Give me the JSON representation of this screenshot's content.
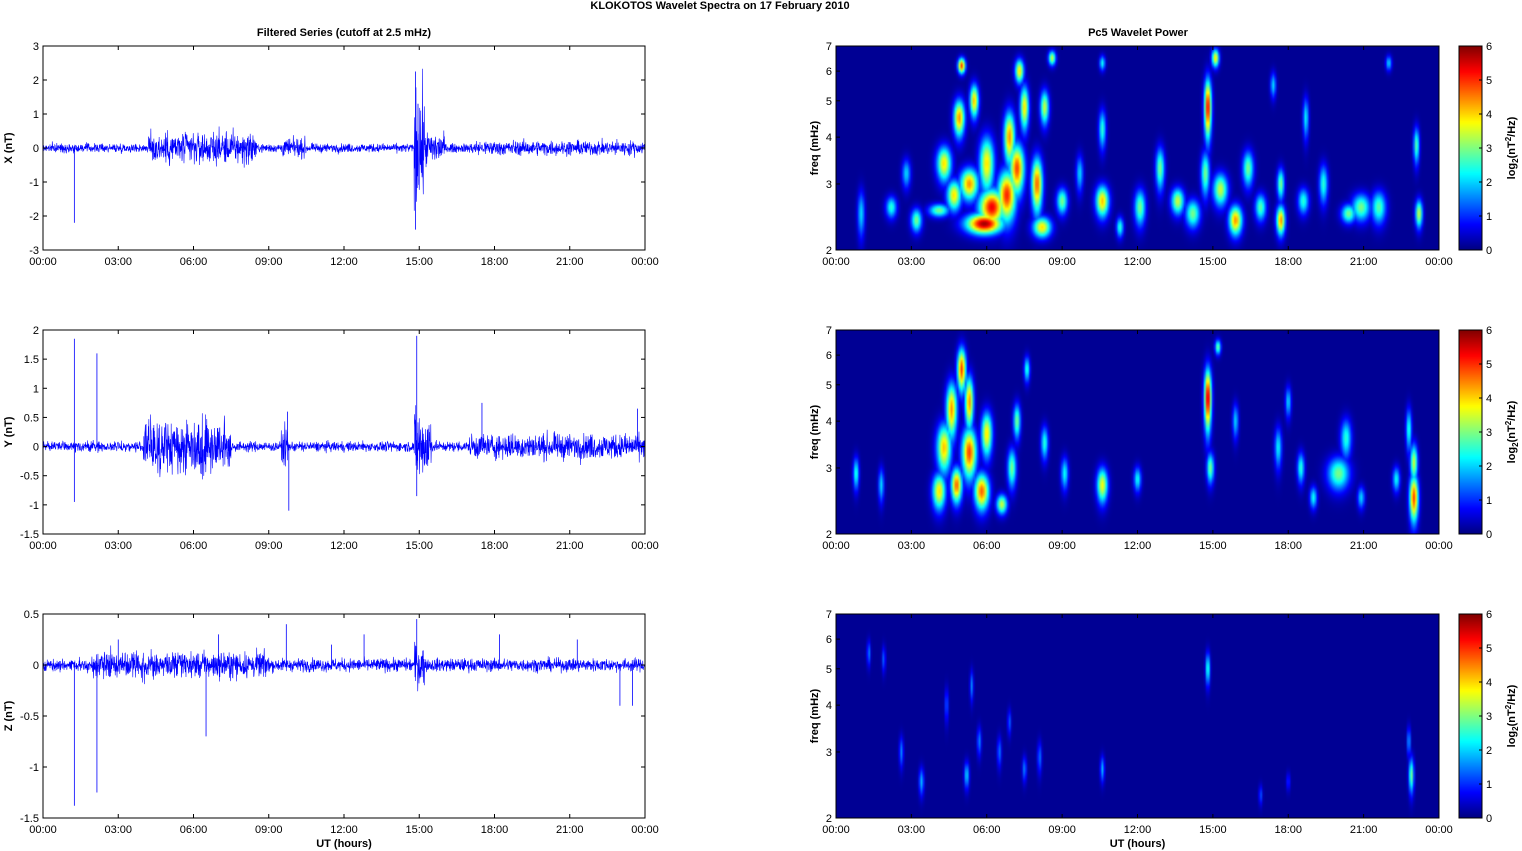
{
  "suptitle": "KLOKOTOS Wavelet Spectra on 17 February  2010",
  "left_title": "Filtered Series (cutoff at 2.5 mHz)",
  "right_title": "Pc5 Wavelet Power",
  "x_label": "UT (hours)",
  "x_tick_labels": [
    "00:00",
    "03:00",
    "06:00",
    "09:00",
    "12:00",
    "15:00",
    "18:00",
    "21:00",
    "00:00"
  ],
  "freq_label": "freq (mHz)",
  "freq_ticks": [
    "2",
    "3",
    "4",
    "5",
    "6",
    "7"
  ],
  "colorbar_label": "log2(nT2/Hz)",
  "colorbar_ticks": [
    "0",
    "1",
    "2",
    "3",
    "4",
    "5",
    "6"
  ],
  "colors": {
    "trace": "#0000ff",
    "jet_low": "#00008f",
    "jet_high": "#800000"
  },
  "chart_data": [
    {
      "type": "line",
      "component": "X",
      "ylabel": "X (nT)",
      "ylim": [
        -3,
        3
      ],
      "yticks": [
        "-3",
        "-2",
        "-1",
        "0",
        "1",
        "2",
        "3"
      ],
      "xlim_hours": [
        0,
        24
      ],
      "series": [
        {
          "baseline": 0,
          "noise_amplitude_nT": 0.12,
          "bursts": [
            [
              4.2,
              8.5,
              0.45
            ],
            [
              14.8,
              15.2,
              1.5
            ],
            [
              15.2,
              16.0,
              0.45
            ],
            [
              9.5,
              10.5,
              0.25
            ],
            [
              17.0,
              24,
              0.2
            ]
          ],
          "spikes": [
            [
              1.25,
              -2.2
            ],
            [
              14.85,
              2.25
            ],
            [
              14.85,
              -2.4
            ],
            [
              14.95,
              1.3
            ]
          ]
        }
      ]
    },
    {
      "type": "line",
      "component": "Y",
      "ylabel": "Y (nT)",
      "ylim": [
        -1.5,
        2
      ],
      "yticks": [
        "-1.5",
        "-1",
        "-0.5",
        "0",
        "0.5",
        "1",
        "1.5",
        "2"
      ],
      "xlim_hours": [
        0,
        24
      ],
      "series": [
        {
          "baseline": 0,
          "noise_amplitude_nT": 0.08,
          "bursts": [
            [
              4.0,
              7.5,
              0.45
            ],
            [
              14.8,
              15.5,
              0.6
            ],
            [
              17.0,
              24,
              0.2
            ],
            [
              9.5,
              9.8,
              0.3
            ]
          ],
          "spikes": [
            [
              1.25,
              1.85
            ],
            [
              1.25,
              -0.95
            ],
            [
              2.15,
              1.6
            ],
            [
              9.8,
              -1.1
            ],
            [
              9.75,
              0.6
            ],
            [
              14.9,
              1.9
            ],
            [
              14.9,
              -0.85
            ],
            [
              17.5,
              0.75
            ],
            [
              23.7,
              0.65
            ]
          ]
        }
      ]
    },
    {
      "type": "line",
      "component": "Z",
      "ylabel": "Z (nT)",
      "ylim": [
        -1.5,
        0.5
      ],
      "yticks": [
        "-1.5",
        "-1",
        "-0.5",
        "0",
        "0.5"
      ],
      "xlim_hours": [
        0,
        24
      ],
      "series": [
        {
          "baseline": 0,
          "noise_amplitude_nT": 0.06,
          "bursts": [
            [
              2.0,
              9.0,
              0.12
            ],
            [
              14.8,
              15.2,
              0.2
            ]
          ],
          "spikes": [
            [
              1.25,
              -1.38
            ],
            [
              2.15,
              -1.25
            ],
            [
              6.5,
              -0.7
            ],
            [
              9.7,
              0.4
            ],
            [
              14.9,
              0.45
            ],
            [
              3.0,
              0.25
            ],
            [
              7.0,
              0.3
            ],
            [
              11.5,
              0.2
            ],
            [
              12.8,
              0.3
            ],
            [
              18.2,
              0.3
            ],
            [
              21.3,
              0.25
            ],
            [
              23.0,
              -0.4
            ],
            [
              23.5,
              -0.4
            ]
          ]
        }
      ]
    },
    {
      "type": "heatmap",
      "component": "X",
      "quantity": "Pc5 wavelet power",
      "xlim_hours": [
        0,
        24
      ],
      "ylim_mHz": [
        2,
        7
      ],
      "ylog": true,
      "clim": [
        0,
        6
      ],
      "colormap": "jet",
      "blobs": [
        [
          4.1,
          2.55,
          0.28,
          0.07,
          3
        ],
        [
          4.3,
          3.4,
          0.2,
          0.25,
          4
        ],
        [
          4.7,
          2.8,
          0.2,
          0.18,
          4
        ],
        [
          4.9,
          4.5,
          0.15,
          0.35,
          4.5
        ],
        [
          5.0,
          6.2,
          0.1,
          0.2,
          5
        ],
        [
          5.3,
          3.0,
          0.25,
          0.2,
          4.5
        ],
        [
          5.5,
          5.0,
          0.12,
          0.35,
          4.2
        ],
        [
          5.9,
          2.35,
          0.5,
          0.1,
          6
        ],
        [
          6.2,
          2.6,
          0.35,
          0.2,
          5.5
        ],
        [
          6.0,
          3.4,
          0.2,
          0.4,
          4
        ],
        [
          6.8,
          2.8,
          0.25,
          0.3,
          5.2
        ],
        [
          6.9,
          4.0,
          0.15,
          0.45,
          4.5
        ],
        [
          7.2,
          3.3,
          0.2,
          0.35,
          5
        ],
        [
          7.5,
          4.8,
          0.12,
          0.45,
          4
        ],
        [
          7.3,
          6.0,
          0.12,
          0.3,
          4
        ],
        [
          8.0,
          3.0,
          0.15,
          0.35,
          4.8
        ],
        [
          8.3,
          4.8,
          0.12,
          0.35,
          3.5
        ],
        [
          8.6,
          6.5,
          0.1,
          0.2,
          3.5
        ],
        [
          8.2,
          2.3,
          0.25,
          0.1,
          4
        ],
        [
          9.0,
          2.7,
          0.15,
          0.15,
          3
        ],
        [
          1.0,
          2.5,
          0.1,
          0.25,
          2
        ],
        [
          2.2,
          2.6,
          0.15,
          0.12,
          2.5
        ],
        [
          3.2,
          2.4,
          0.15,
          0.12,
          3
        ],
        [
          2.8,
          3.2,
          0.12,
          0.2,
          2
        ],
        [
          10.6,
          2.7,
          0.18,
          0.18,
          4.2
        ],
        [
          10.6,
          4.2,
          0.1,
          0.35,
          2.5
        ],
        [
          10.6,
          6.3,
          0.08,
          0.2,
          2.3
        ],
        [
          9.7,
          3.2,
          0.1,
          0.25,
          2
        ],
        [
          12.1,
          2.6,
          0.15,
          0.2,
          3
        ],
        [
          12.9,
          3.3,
          0.12,
          0.3,
          3
        ],
        [
          13.6,
          2.7,
          0.18,
          0.15,
          3.5
        ],
        [
          14.2,
          2.5,
          0.2,
          0.15,
          3
        ],
        [
          14.7,
          3.2,
          0.12,
          0.3,
          3
        ],
        [
          14.8,
          4.8,
          0.1,
          0.6,
          5.5
        ],
        [
          15.1,
          6.5,
          0.1,
          0.25,
          4
        ],
        [
          15.3,
          2.9,
          0.2,
          0.2,
          3.5
        ],
        [
          15.9,
          2.4,
          0.18,
          0.15,
          4.5
        ],
        [
          16.4,
          3.3,
          0.15,
          0.25,
          3
        ],
        [
          16.9,
          2.6,
          0.15,
          0.15,
          2.8
        ],
        [
          17.7,
          2.4,
          0.12,
          0.15,
          4.5
        ],
        [
          17.7,
          3.0,
          0.1,
          0.2,
          3
        ],
        [
          18.6,
          2.7,
          0.15,
          0.15,
          2.5
        ],
        [
          18.7,
          4.5,
          0.08,
          0.4,
          2.2
        ],
        [
          19.4,
          3.0,
          0.12,
          0.25,
          2.5
        ],
        [
          20.4,
          2.5,
          0.2,
          0.1,
          3
        ],
        [
          20.9,
          2.6,
          0.25,
          0.15,
          3
        ],
        [
          21.6,
          2.6,
          0.2,
          0.18,
          2.8
        ],
        [
          23.2,
          2.5,
          0.1,
          0.15,
          3.5
        ],
        [
          23.1,
          3.8,
          0.08,
          0.3,
          2.8
        ],
        [
          17.4,
          5.5,
          0.08,
          0.3,
          2
        ],
        [
          22.0,
          6.3,
          0.08,
          0.2,
          2
        ],
        [
          11.3,
          2.3,
          0.1,
          0.1,
          2.5
        ]
      ]
    },
    {
      "type": "heatmap",
      "component": "Y",
      "quantity": "Pc5 wavelet power",
      "xlim_hours": [
        0,
        24
      ],
      "ylim_mHz": [
        2,
        7
      ],
      "ylog": true,
      "clim": [
        0,
        6
      ],
      "colormap": "jet",
      "blobs": [
        [
          0.8,
          2.9,
          0.08,
          0.2,
          2.5
        ],
        [
          1.8,
          2.7,
          0.08,
          0.2,
          2
        ],
        [
          4.1,
          2.6,
          0.18,
          0.2,
          4
        ],
        [
          4.3,
          3.4,
          0.2,
          0.35,
          4.2
        ],
        [
          4.6,
          4.3,
          0.15,
          0.5,
          4.5
        ],
        [
          4.8,
          2.7,
          0.15,
          0.2,
          4.8
        ],
        [
          5.0,
          5.5,
          0.12,
          0.5,
          5
        ],
        [
          5.3,
          3.3,
          0.2,
          0.35,
          5
        ],
        [
          5.3,
          4.5,
          0.12,
          0.5,
          4.5
        ],
        [
          5.8,
          2.6,
          0.2,
          0.2,
          4.8
        ],
        [
          6.0,
          3.7,
          0.15,
          0.35,
          4
        ],
        [
          6.6,
          2.4,
          0.15,
          0.1,
          3.5
        ],
        [
          7.0,
          3.0,
          0.12,
          0.25,
          3
        ],
        [
          7.2,
          4.0,
          0.1,
          0.3,
          3
        ],
        [
          7.6,
          5.5,
          0.08,
          0.3,
          2.5
        ],
        [
          8.3,
          3.5,
          0.1,
          0.25,
          2.5
        ],
        [
          9.1,
          2.9,
          0.1,
          0.2,
          2.3
        ],
        [
          10.6,
          2.7,
          0.15,
          0.2,
          3.8
        ],
        [
          12.0,
          2.8,
          0.1,
          0.15,
          2.3
        ],
        [
          14.8,
          4.6,
          0.1,
          0.6,
          5.8
        ],
        [
          14.9,
          3.0,
          0.1,
          0.2,
          3
        ],
        [
          15.2,
          6.3,
          0.08,
          0.2,
          3
        ],
        [
          17.6,
          3.4,
          0.1,
          0.3,
          2.2
        ],
        [
          18.5,
          3.0,
          0.1,
          0.2,
          2.5
        ],
        [
          19.0,
          2.5,
          0.1,
          0.12,
          2.3
        ],
        [
          20.0,
          2.9,
          0.3,
          0.2,
          3
        ],
        [
          20.3,
          3.6,
          0.15,
          0.3,
          2.5
        ],
        [
          20.9,
          2.5,
          0.1,
          0.12,
          2
        ],
        [
          22.3,
          2.8,
          0.1,
          0.15,
          2.3
        ],
        [
          23.0,
          2.5,
          0.12,
          0.25,
          5
        ],
        [
          23.0,
          3.1,
          0.1,
          0.25,
          3.5
        ],
        [
          22.8,
          3.8,
          0.08,
          0.35,
          2.5
        ],
        [
          18.0,
          4.5,
          0.08,
          0.3,
          2
        ],
        [
          15.9,
          4.0,
          0.08,
          0.3,
          2
        ]
      ]
    },
    {
      "type": "heatmap",
      "component": "Z",
      "quantity": "Pc5 wavelet power",
      "xlim_hours": [
        0,
        24
      ],
      "ylim_mHz": [
        2,
        7
      ],
      "ylog": true,
      "clim": [
        0,
        6
      ],
      "colormap": "jet",
      "blobs": [
        [
          1.3,
          5.5,
          0.05,
          0.3,
          1.5
        ],
        [
          1.9,
          5.3,
          0.05,
          0.3,
          1.3
        ],
        [
          2.6,
          3.0,
          0.06,
          0.2,
          1.5
        ],
        [
          3.4,
          2.5,
          0.07,
          0.15,
          1.8
        ],
        [
          4.4,
          4.0,
          0.05,
          0.3,
          1.3
        ],
        [
          5.2,
          2.6,
          0.07,
          0.15,
          2
        ],
        [
          5.4,
          4.5,
          0.05,
          0.3,
          1.5
        ],
        [
          5.7,
          3.2,
          0.06,
          0.2,
          1.5
        ],
        [
          6.5,
          3.0,
          0.06,
          0.2,
          1.4
        ],
        [
          6.9,
          3.6,
          0.05,
          0.2,
          1.3
        ],
        [
          7.5,
          2.7,
          0.06,
          0.15,
          1.5
        ],
        [
          8.1,
          2.9,
          0.06,
          0.2,
          1.4
        ],
        [
          10.6,
          2.7,
          0.06,
          0.15,
          1.8
        ],
        [
          14.8,
          5.0,
          0.06,
          0.35,
          2.6
        ],
        [
          22.9,
          2.6,
          0.07,
          0.2,
          3
        ],
        [
          22.8,
          3.2,
          0.05,
          0.2,
          1.8
        ],
        [
          16.9,
          2.3,
          0.05,
          0.1,
          1.2
        ],
        [
          18.0,
          2.5,
          0.05,
          0.1,
          1.0
        ]
      ]
    }
  ]
}
